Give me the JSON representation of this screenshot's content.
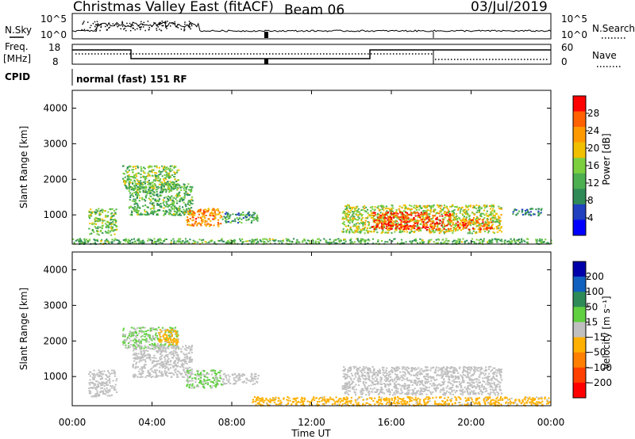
{
  "header": {
    "station": "Christmas Valley East (fitACF)",
    "beam": "Beam 06",
    "date": "03/Jul/2019"
  },
  "panels": {
    "nsky_label": "N.Sky",
    "nsearch_label": "N.Search",
    "freq_label": "Freq.",
    "freq_unit": "[MHz]",
    "nave_label": "Nave",
    "cpid_label": "CPID",
    "cpid_value": "normal (fast) 151 RF",
    "nsky_ticks": [
      "10^5",
      "10^0"
    ],
    "nsearch_ticks": [
      "10^5",
      "10^0"
    ],
    "freq_ticks": [
      "18",
      "8"
    ],
    "nave_ticks": [
      "60",
      "0"
    ]
  },
  "colors": {
    "power_scale": [
      "#0000ff",
      "#2040c0",
      "#2e8b57",
      "#4caf50",
      "#7cd040",
      "#f0c000",
      "#ff9900",
      "#ff6000",
      "#ff0000"
    ],
    "velocity_scale": [
      "#0000aa",
      "#1060c0",
      "#2e8b57",
      "#60d040",
      "#c0c0c0",
      "#ffb000",
      "#ff8000",
      "#ff4000",
      "#ff0000"
    ],
    "ground_scatter": "#c0c0c0"
  },
  "chart_data": [
    {
      "type": "heatmap",
      "name": "power",
      "ylabel": "Slant Range [km]",
      "xlabel": "Time UT",
      "xlim_hours": [
        0,
        24
      ],
      "ylim_km": [
        180,
        4500
      ],
      "x_ticks": [
        "00:00",
        "04:00",
        "08:00",
        "12:00",
        "16:00",
        "20:00",
        "00:00"
      ],
      "y_ticks": [
        1000,
        2000,
        3000,
        4000
      ],
      "colorbar": {
        "label": "Power [dB]",
        "ticks": [
          "4",
          "8",
          "12",
          "16",
          "20",
          "24",
          "28"
        ],
        "range": [
          0,
          30
        ]
      },
      "regions": [
        {
          "t0": 0.8,
          "t1": 2.2,
          "r0": 450,
          "r1": 1200,
          "value": 14
        },
        {
          "t0": 2.5,
          "t1": 5.3,
          "r0": 1700,
          "r1": 2400,
          "value": 14
        },
        {
          "t0": 2.8,
          "t1": 6.0,
          "r0": 1000,
          "r1": 1900,
          "value": 12
        },
        {
          "t0": 5.7,
          "t1": 7.5,
          "r0": 700,
          "r1": 1200,
          "value": 22
        },
        {
          "t0": 7.5,
          "t1": 9.3,
          "r0": 800,
          "r1": 1100,
          "value": 10
        },
        {
          "t0": 13.5,
          "t1": 21.5,
          "r0": 500,
          "r1": 1300,
          "value": 16
        },
        {
          "t0": 15.0,
          "t1": 19.0,
          "r0": 600,
          "r1": 1100,
          "value": 26
        },
        {
          "t0": 19.2,
          "t1": 21.0,
          "r0": 600,
          "r1": 900,
          "value": 24
        },
        {
          "t0": 22.0,
          "t1": 23.5,
          "r0": 1000,
          "r1": 1200,
          "value": 8
        },
        {
          "t0": 0.0,
          "t1": 24.0,
          "r0": 200,
          "r1": 350,
          "value": 12
        }
      ]
    },
    {
      "type": "heatmap",
      "name": "velocity",
      "ylabel": "Slant Range [km]",
      "xlabel": "Time UT",
      "xlim_hours": [
        0,
        24
      ],
      "ylim_km": [
        180,
        4500
      ],
      "x_ticks": [
        "00:00",
        "04:00",
        "08:00",
        "12:00",
        "16:00",
        "20:00",
        "00:00"
      ],
      "y_ticks": [
        1000,
        2000,
        3000,
        4000
      ],
      "colorbar": {
        "label": "Velocity [m s⁻¹]",
        "ticks": [
          "200",
          "100",
          "50",
          "15",
          "−15",
          "−50",
          "−100",
          "−200"
        ],
        "range": [
          -250,
          250
        ]
      },
      "regions": [
        {
          "t0": 0.8,
          "t1": 2.2,
          "r0": 450,
          "r1": 1200,
          "value": 0
        },
        {
          "t0": 2.5,
          "t1": 5.3,
          "r0": 1800,
          "r1": 2400,
          "value": 30
        },
        {
          "t0": 4.3,
          "t1": 5.3,
          "r0": 1900,
          "r1": 2350,
          "value": -40
        },
        {
          "t0": 3.0,
          "t1": 6.0,
          "r0": 1000,
          "r1": 1900,
          "value": 0
        },
        {
          "t0": 5.7,
          "t1": 7.5,
          "r0": 700,
          "r1": 1200,
          "value": 30
        },
        {
          "t0": 7.5,
          "t1": 9.3,
          "r0": 800,
          "r1": 1100,
          "value": 0
        },
        {
          "t0": 13.5,
          "t1": 21.5,
          "r0": 500,
          "r1": 1300,
          "value": 0
        },
        {
          "t0": 9.0,
          "t1": 24.0,
          "r0": 200,
          "r1": 450,
          "value": -40
        }
      ]
    }
  ]
}
